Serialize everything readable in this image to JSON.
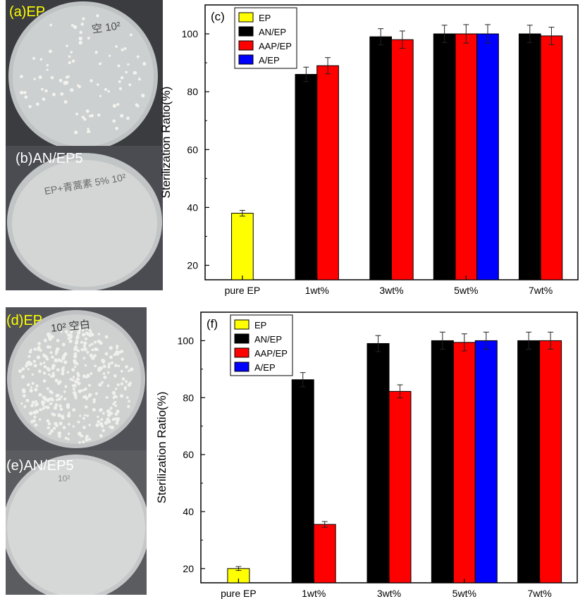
{
  "panels": {
    "a": "(a)EP",
    "b": "(b)AN/EP5",
    "d": "(d)EP",
    "e": "(e)AN/EP5",
    "label_colors": {
      "yellow": "#ffff00",
      "white": "#ffffff"
    }
  },
  "plate_writing": {
    "a": "空 10²",
    "b": "EP+青蒿素 5% 10²",
    "d": "10² 空白",
    "e": "10²"
  },
  "chart_data": [
    {
      "type": "bar",
      "panel_label": "(c)",
      "categories": [
        "pure EP",
        "1wt%",
        "3wt%",
        "5wt%",
        "7wt%"
      ],
      "ylabel": "Sterilization Ratio(%)",
      "ylim": [
        15,
        110
      ],
      "yticks": [
        20,
        40,
        60,
        80,
        100
      ],
      "legend_position": "top-left",
      "series": [
        {
          "name": "EP",
          "color": "#ffff00",
          "values": [
            38,
            null,
            null,
            null,
            null
          ],
          "errors": [
            1,
            null,
            null,
            null,
            null
          ]
        },
        {
          "name": "AN/EP",
          "color": "#000000",
          "values": [
            null,
            86,
            99,
            100,
            100
          ],
          "errors": [
            null,
            2.5,
            2.8,
            3,
            3
          ]
        },
        {
          "name": "AAP/EP",
          "color": "#ff0000",
          "values": [
            null,
            89,
            98,
            100,
            99.3
          ],
          "errors": [
            null,
            2.8,
            3,
            3.2,
            3
          ]
        },
        {
          "name": "A/EP",
          "color": "#0000ff",
          "values": [
            null,
            null,
            null,
            100,
            null
          ],
          "errors": [
            null,
            null,
            null,
            3.2,
            null
          ]
        }
      ]
    },
    {
      "type": "bar",
      "panel_label": "(f)",
      "categories": [
        "pure EP",
        "1wt%",
        "3wt%",
        "5wt%",
        "7wt%"
      ],
      "ylabel": "Sterilization Ratio(%)",
      "ylim": [
        15,
        110
      ],
      "yticks": [
        20,
        40,
        60,
        80,
        100
      ],
      "legend_position": "top-left",
      "series": [
        {
          "name": "EP",
          "color": "#ffff00",
          "values": [
            20,
            null,
            null,
            null,
            null
          ],
          "errors": [
            0.7,
            null,
            null,
            null,
            null
          ]
        },
        {
          "name": "AN/EP",
          "color": "#000000",
          "values": [
            null,
            86.3,
            99,
            100,
            100
          ],
          "errors": [
            null,
            2.5,
            2.8,
            3,
            3
          ]
        },
        {
          "name": "AAP/EP",
          "color": "#ff0000",
          "values": [
            null,
            35.5,
            82.2,
            99.4,
            100
          ],
          "errors": [
            null,
            1,
            2.3,
            3,
            3
          ]
        },
        {
          "name": "A/EP",
          "color": "#0000ff",
          "values": [
            null,
            null,
            null,
            100,
            null
          ],
          "errors": [
            null,
            null,
            null,
            3,
            null
          ]
        }
      ]
    }
  ]
}
